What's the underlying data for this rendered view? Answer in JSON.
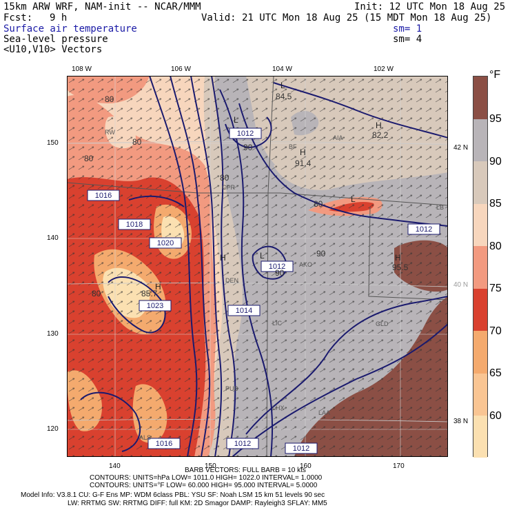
{
  "header": {
    "model_title": "15km ARW WRF, NAM-init -- NCAR/MMM",
    "init": "Init: 12 UTC Mon 18 Aug 25",
    "fcst_label": "Fcst:",
    "fcst_value": "9 h",
    "valid": "Valid: 21 UTC Mon 18 Aug 25 (15 MDT Mon 18 Aug 25)",
    "field1": "Surface air temperature",
    "field1_sm": "sm= 1",
    "field2": "Sea-level pressure",
    "field2_sm": "sm= 4",
    "field3": "<U10,V10> Vectors"
  },
  "axes": {
    "top_lon": [
      "108 W",
      "106 W",
      "104 W",
      "102 W"
    ],
    "right_lat": [
      "42 N",
      "40 N",
      "38 N"
    ],
    "left_grid": [
      "150",
      "140",
      "130",
      "120"
    ],
    "bottom_grid": [
      "140",
      "150",
      "160",
      "170"
    ]
  },
  "colorbar": {
    "unit": "°F",
    "levels": [
      "95",
      "90",
      "85",
      "80",
      "75",
      "70",
      "65",
      "60"
    ],
    "colors": [
      "#8b4f45",
      "#b8b4b8",
      "#d8c9bb",
      "#f7d6bd",
      "#f29a80",
      "#d9412f",
      "#f4aa6e",
      "#fbe0b1"
    ]
  },
  "map_labels": {
    "pressure_boxes": [
      "1016",
      "1018",
      "1020",
      "1012",
      "1012",
      "1012",
      "1014",
      "1016",
      "1012",
      "1012",
      "1023"
    ],
    "temperature_values": [
      "80",
      "80",
      "80",
      "84.5",
      "82.2",
      "91.4",
      "90",
      "80",
      "90",
      "95.5",
      "80",
      "80",
      "90",
      "85.7"
    ],
    "station_ids": [
      "RW",
      "BF",
      "AIA",
      "CPR",
      "LB",
      "DEN",
      "AKO",
      "LIC",
      "GLD",
      "PUB",
      "LHX",
      "LAA",
      "ALS"
    ],
    "highs_lows": [
      "L",
      "H",
      "H",
      "L",
      "H",
      "L",
      "H",
      "L",
      "H"
    ]
  },
  "footer": {
    "barb_vectors": "BARB VECTORS:  FULL BARB = 10 kts",
    "contours_slp": "CONTOURS:  UNITS=hPa   LOW=  1011.0          HIGH=  1022.0          INTERVAL=    1.0000",
    "contours_temp": "CONTOURS:  UNITS=°F   LOW=   60.000         HIGH=   95.000         INTERVAL=    5.0000",
    "model_info_1": "Model Info: V3.8.1      CU: G-F Ens  MP: WDM 6class   PBL: YSU          SF: Noah LSM      15 km     51 levels    90 sec",
    "model_info_2": "LW: RRTMG    SW: RRTMG   DIFF: full    KM: 2D Smagor DAMP: Rayleigh3   SFLAY: MM5"
  }
}
